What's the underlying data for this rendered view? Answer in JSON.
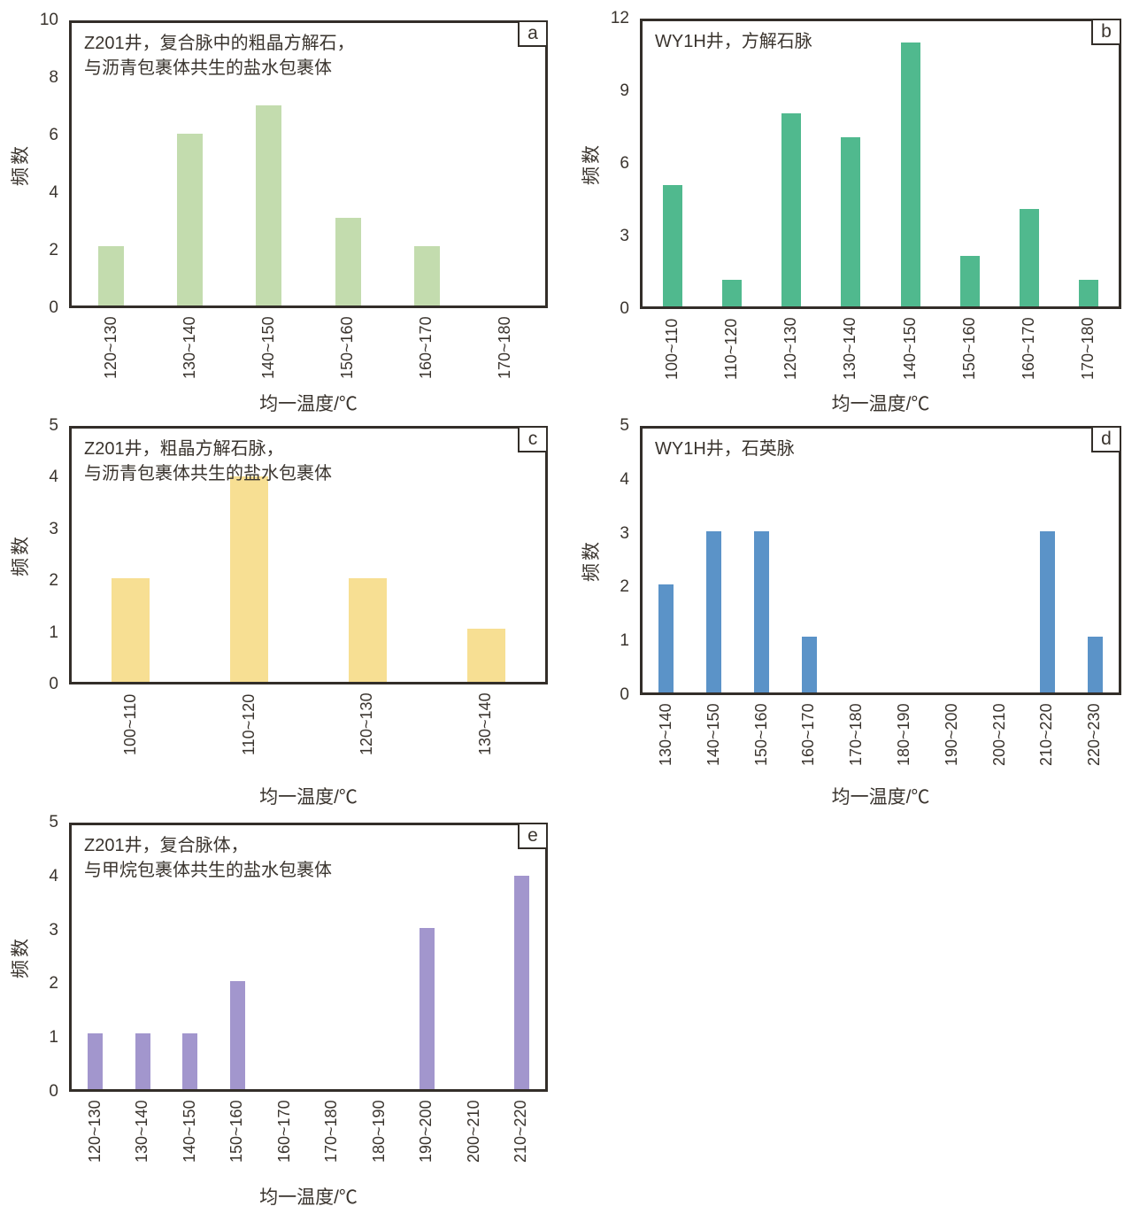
{
  "figure": {
    "background": "#ffffff",
    "frame_color": "#332e29",
    "text_color": "#3a342e"
  },
  "chart_data": [
    {
      "panel_label": "a",
      "type": "bar",
      "title_lines": [
        "Z201井，复合脉中的粗晶方解石，",
        "与沥青包裹体共生的盐水包裹体"
      ],
      "xlabel": "均一温度/℃",
      "ylabel": "频数",
      "categories": [
        "120~130",
        "130~140",
        "140~150",
        "150~160",
        "160~170",
        "170~180"
      ],
      "values": [
        2,
        6,
        7,
        3,
        2,
        0
      ],
      "ylim": [
        0,
        10
      ],
      "yticks": [
        0,
        2,
        4,
        6,
        8,
        10
      ],
      "grid": false,
      "bar_color": "#c3dcae"
    },
    {
      "panel_label": "b",
      "type": "bar",
      "title_lines": [
        "WY1H井，方解石脉"
      ],
      "xlabel": "均一温度/℃",
      "ylabel": "频数",
      "categories": [
        "100~110",
        "110~120",
        "120~130",
        "130~140",
        "140~150",
        "150~160",
        "160~170",
        "170~180"
      ],
      "values": [
        5,
        1,
        8,
        7,
        11,
        2,
        4,
        1
      ],
      "ylim": [
        0,
        12
      ],
      "yticks": [
        0,
        3,
        6,
        9,
        12
      ],
      "grid": false,
      "bar_color": "#50b98e"
    },
    {
      "panel_label": "c",
      "type": "bar",
      "title_lines": [
        "Z201井，粗晶方解石脉，",
        "与沥青包裹体共生的盐水包裹体"
      ],
      "xlabel": "均一温度/℃",
      "ylabel": "频数",
      "categories": [
        "100~110",
        "110~120",
        "120~130",
        "130~140"
      ],
      "values": [
        2,
        4,
        2,
        1
      ],
      "ylim": [
        0,
        5
      ],
      "yticks": [
        0,
        1,
        2,
        3,
        4,
        5
      ],
      "grid": false,
      "bar_color": "#f7df93"
    },
    {
      "panel_label": "d",
      "type": "bar",
      "title_lines": [
        "WY1H井，石英脉"
      ],
      "xlabel": "均一温度/℃",
      "ylabel": "频数",
      "categories": [
        "130~140",
        "140~150",
        "150~160",
        "160~170",
        "170~180",
        "180~190",
        "190~200",
        "200~210",
        "210~220",
        "220~230"
      ],
      "values": [
        2,
        3,
        3,
        1,
        0,
        0,
        0,
        0,
        3,
        1
      ],
      "ylim": [
        0,
        5
      ],
      "yticks": [
        0,
        1,
        2,
        3,
        4,
        5
      ],
      "grid": false,
      "bar_color": "#5b93c8"
    },
    {
      "panel_label": "e",
      "type": "bar",
      "title_lines": [
        "Z201井，复合脉体，",
        "与甲烷包裹体共生的盐水包裹体"
      ],
      "xlabel": "均一温度/℃",
      "ylabel": "频数",
      "categories": [
        "120~130",
        "130~140",
        "140~150",
        "150~160",
        "160~170",
        "170~180",
        "180~190",
        "190~200",
        "200~210",
        "210~220"
      ],
      "values": [
        1,
        1,
        1,
        2,
        0,
        0,
        0,
        3,
        0,
        4
      ],
      "ylim": [
        0,
        5
      ],
      "yticks": [
        0,
        1,
        2,
        3,
        4,
        5
      ],
      "grid": false,
      "bar_color": "#a296cd"
    }
  ]
}
